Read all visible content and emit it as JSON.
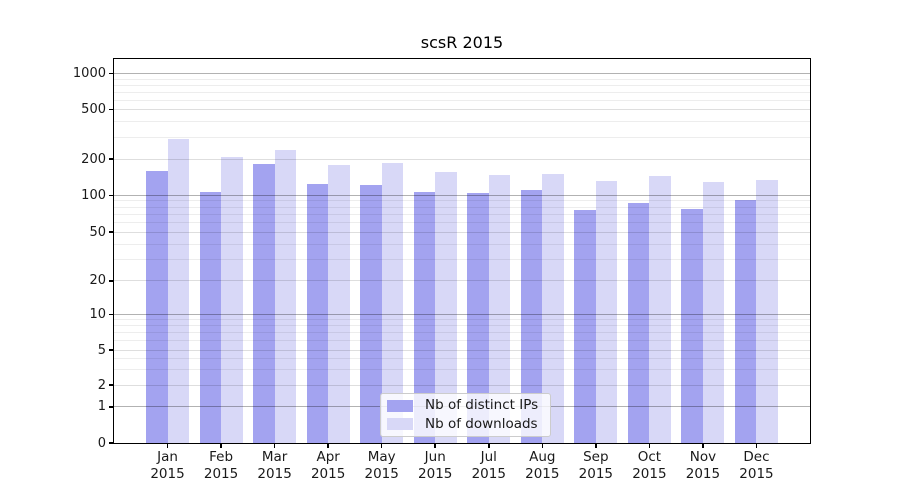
{
  "chart_data": {
    "type": "bar",
    "title": "scsR 2015",
    "categories": [
      "Jan",
      "Feb",
      "Mar",
      "Apr",
      "May",
      "Jun",
      "Jul",
      "Aug",
      "Sep",
      "Oct",
      "Nov",
      "Dec"
    ],
    "x_year_label": "2015",
    "series": [
      {
        "name": "Nb of distinct IPs",
        "color": "#a3a3f0",
        "values": [
          160,
          106,
          182,
          124,
          122,
          107,
          105,
          110,
          76,
          87,
          77,
          91
        ]
      },
      {
        "name": "Nb of downloads",
        "color": "#d8d8f7",
        "values": [
          290,
          210,
          238,
          180,
          186,
          156,
          148,
          152,
          131,
          145,
          128,
          133
        ]
      }
    ],
    "xlabel": "",
    "ylabel": "",
    "yscale": "log (symlog: linear segment below 1, 0 at baseline)",
    "ytick_labels": [
      0,
      1,
      2,
      5,
      10,
      20,
      50,
      100,
      200,
      500,
      1000
    ],
    "ylim": [
      0,
      1300
    ],
    "grid": "horizontal major and minor gridlines, drawn visible through bars",
    "legend_position": "lower center inside plot"
  },
  "colors": {
    "background": "#ffffff",
    "axis": "#000000",
    "text": "#1a1a1a",
    "grid_decade": "rgba(0,0,0,0.30)",
    "grid_labeled": "rgba(0,0,0,0.13)",
    "grid_minor": "rgba(0,0,0,0.07)",
    "legend_border": "#cccccc",
    "legend_background": "rgba(255,255,255,0.8)"
  }
}
